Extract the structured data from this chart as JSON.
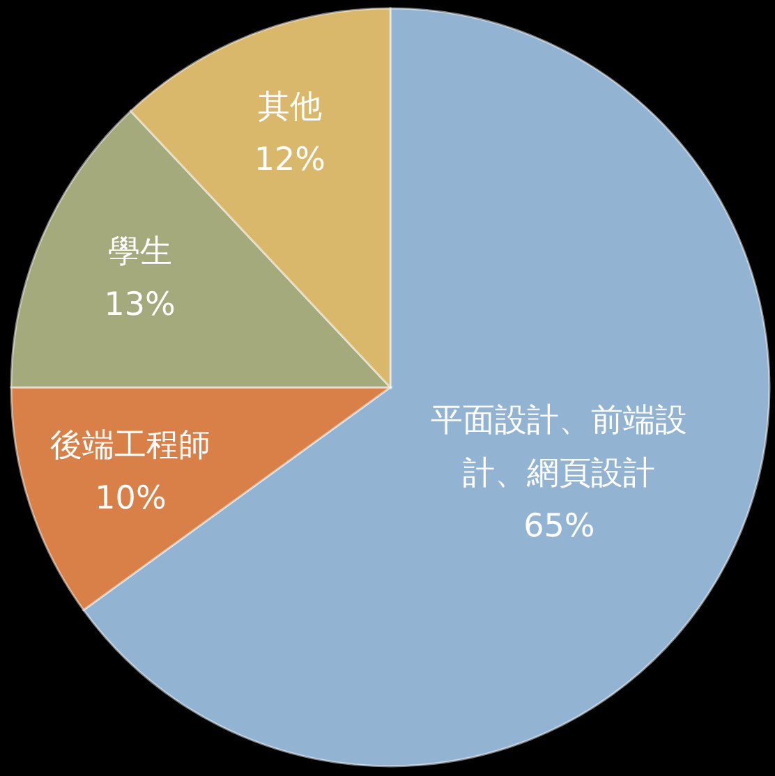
{
  "chart_data": {
    "type": "pie",
    "categories": [
      "平面設計、前端設計、網頁設計",
      "後端工程師",
      "學生",
      "其他"
    ],
    "values": [
      65,
      10,
      13,
      12
    ],
    "colors": [
      "#93b3d2",
      "#d98049",
      "#a5aa7d",
      "#d9b76b"
    ],
    "value_labels": [
      "65%",
      "10%",
      "13%",
      "12%"
    ]
  }
}
